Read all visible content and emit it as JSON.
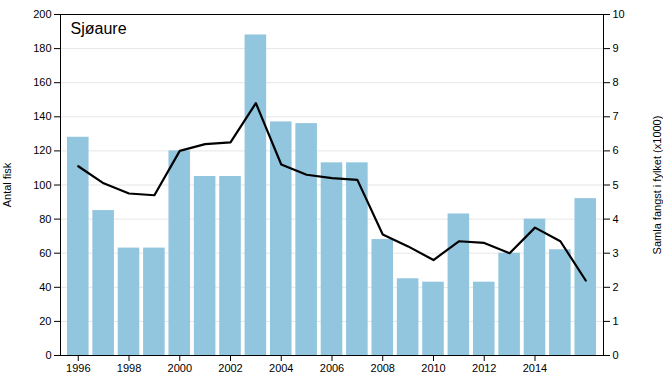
{
  "chart_data": {
    "type": "bar",
    "title": "Sjøaure",
    "x": [
      1996,
      1997,
      1998,
      1999,
      2000,
      2001,
      2002,
      2003,
      2004,
      2005,
      2006,
      2007,
      2008,
      2009,
      2010,
      2011,
      2012,
      2013,
      2014,
      2015,
      2016
    ],
    "series": [
      {
        "type": "bar",
        "color": "#92c5de",
        "values": [
          128,
          85,
          63,
          63,
          120,
          105,
          105,
          188,
          137,
          136,
          113,
          113,
          68,
          45,
          43,
          83,
          43,
          60,
          80,
          62,
          92
        ]
      },
      {
        "type": "line",
        "color": "black",
        "axis": "y2",
        "values": [
          5.55,
          5.05,
          4.75,
          4.7,
          6.0,
          6.2,
          6.25,
          7.4,
          5.6,
          5.3,
          5.2,
          5.15,
          3.55,
          3.2,
          2.8,
          3.35,
          3.3,
          3.0,
          3.75,
          3.35,
          2.2
        ]
      }
    ],
    "ylabel": "Antal fisk",
    "y2label": "Samla fangst i fylket (x1000)",
    "xlim": [
      1995.3,
      2016.7
    ],
    "xticks": [
      1996,
      1998,
      2000,
      2002,
      2004,
      2006,
      2008,
      2010,
      2012,
      2014
    ],
    "ylim": [
      0,
      200
    ],
    "yticks": [
      0,
      20,
      40,
      60,
      80,
      100,
      120,
      140,
      160,
      180,
      200
    ],
    "y2lim": [
      0,
      10
    ],
    "y2ticks": [
      0,
      1,
      2,
      3,
      4,
      5,
      6,
      7,
      8,
      9,
      10
    ],
    "grid": true
  }
}
